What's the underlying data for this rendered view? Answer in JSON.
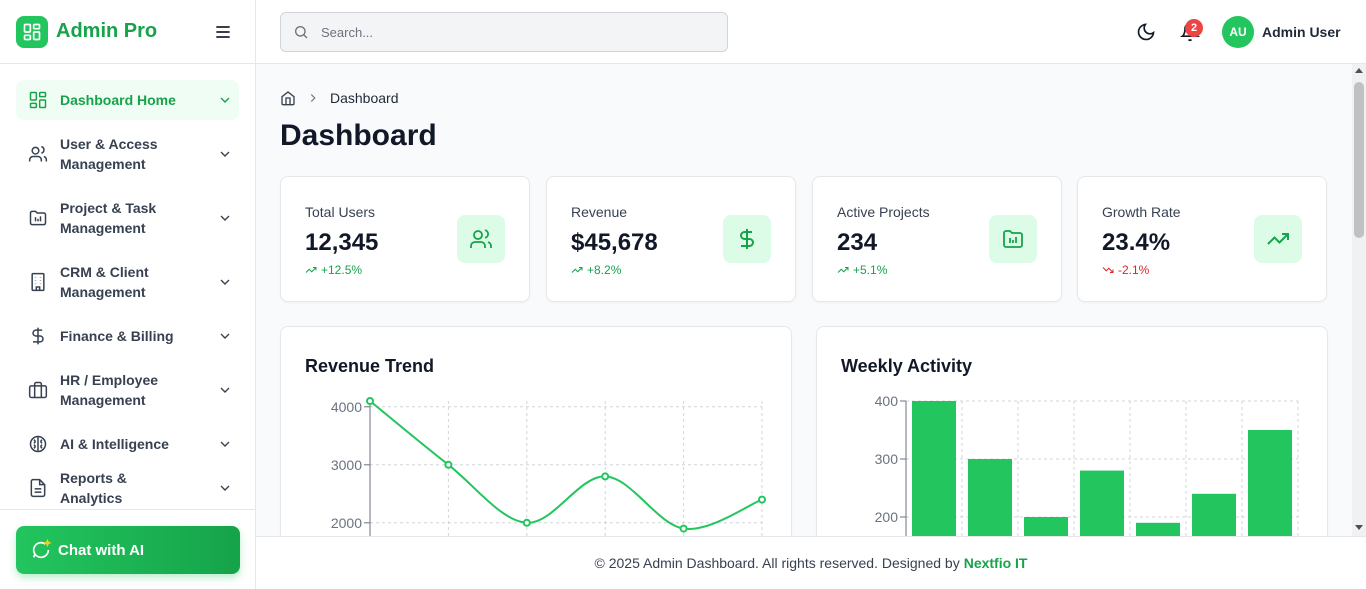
{
  "brand": {
    "name": "Admin Pro"
  },
  "sidebar": {
    "items": [
      {
        "label": "Dashboard Home",
        "icon": "grid-icon"
      },
      {
        "label": "User & Access Management",
        "icon": "users-icon"
      },
      {
        "label": "Project & Task Management",
        "icon": "folder-chart-icon"
      },
      {
        "label": "CRM & Client Management",
        "icon": "building-icon"
      },
      {
        "label": "Finance & Billing",
        "icon": "dollar-icon"
      },
      {
        "label": "HR / Employee Management",
        "icon": "briefcase-icon"
      },
      {
        "label": "AI & Intelligence",
        "icon": "brain-icon"
      },
      {
        "label": "Reports & Analytics",
        "icon": "file-text-icon"
      }
    ],
    "chat_label": "Chat with AI"
  },
  "header": {
    "search_placeholder": "Search...",
    "notification_count": "2",
    "avatar_initials": "AU",
    "user_name": "Admin User"
  },
  "breadcrumb": {
    "current": "Dashboard"
  },
  "page_title": "Dashboard",
  "stats": [
    {
      "label": "Total Users",
      "value": "12,345",
      "change": "+12.5%",
      "trend": "up",
      "icon": "users-icon"
    },
    {
      "label": "Revenue",
      "value": "$45,678",
      "change": "+8.2%",
      "trend": "up",
      "icon": "dollar-icon"
    },
    {
      "label": "Active Projects",
      "value": "234",
      "change": "+5.1%",
      "trend": "up",
      "icon": "folder-chart-icon"
    },
    {
      "label": "Growth Rate",
      "value": "23.4%",
      "change": "-2.1%",
      "trend": "down",
      "icon": "trending-up-icon"
    }
  ],
  "colors": {
    "accent": "#22c55e",
    "accent_dark": "#16a34a",
    "negative": "#dc2626"
  },
  "chart_data": [
    {
      "type": "line",
      "title": "Revenue Trend",
      "series": [
        {
          "name": "Revenue",
          "values": [
            4100,
            3000,
            2000,
            2800,
            1900,
            2400
          ]
        }
      ],
      "yticks_visible": [
        4000,
        3000,
        2000
      ],
      "ylim": [
        0,
        4100
      ]
    },
    {
      "type": "bar",
      "title": "Weekly Activity",
      "series": [
        {
          "name": "Activity",
          "values": [
            400,
            300,
            200,
            280,
            190,
            240,
            350
          ]
        }
      ],
      "yticks_visible": [
        400,
        300,
        200
      ],
      "ylim": [
        0,
        400
      ]
    }
  ],
  "footer": {
    "text": "© 2025 Admin Dashboard. All rights reserved. Designed by",
    "link": "Nextfio IT"
  }
}
